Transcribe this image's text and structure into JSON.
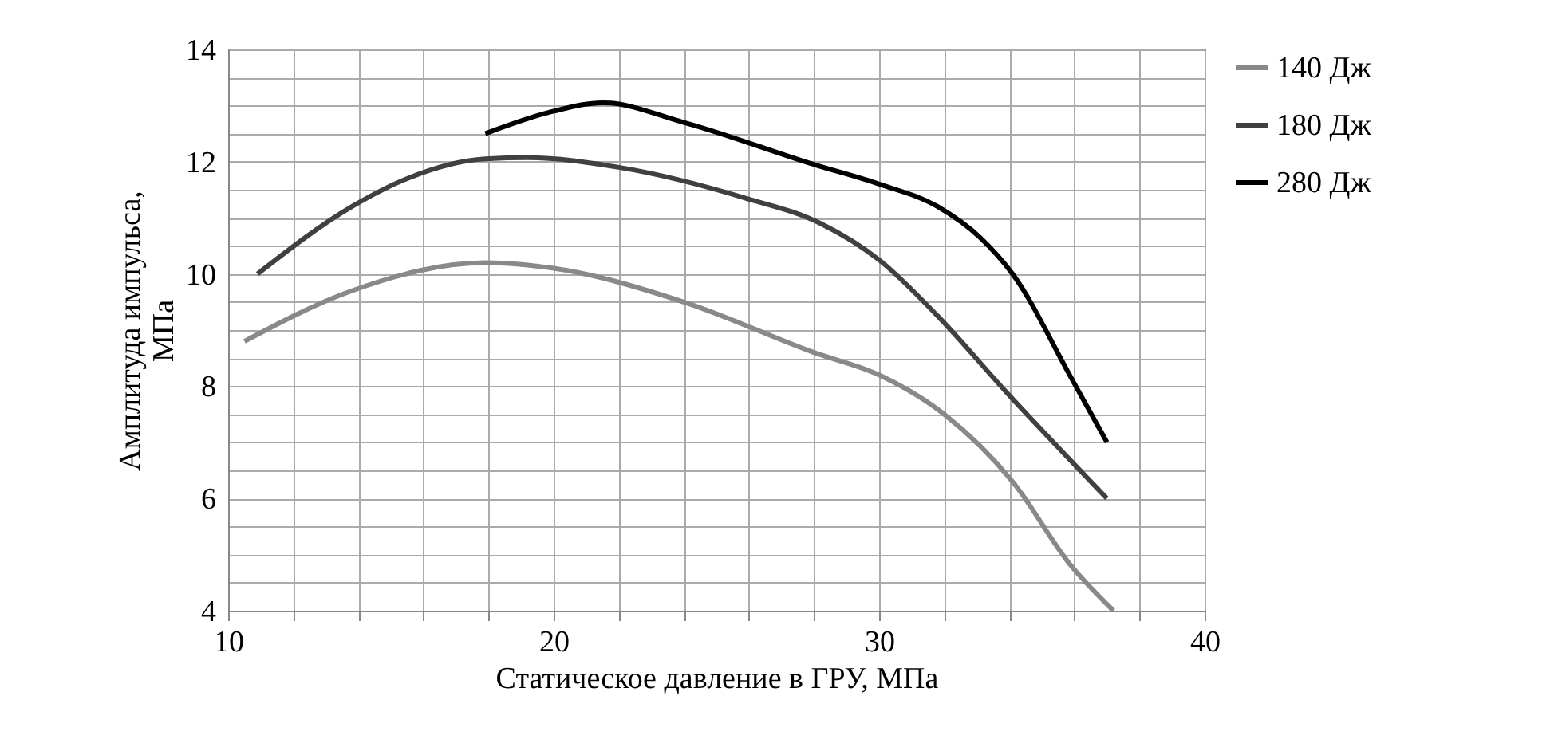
{
  "chart_data": {
    "type": "line",
    "xlabel": "Статическое давление в ГРУ, МПа",
    "ylabel": "Амплитуда импульса,\nМПа",
    "xlim": [
      10,
      40
    ],
    "ylim": [
      4,
      14
    ],
    "xticks": [
      10,
      {
        "value": 12,
        "label": null
      },
      {
        "value": 14,
        "label": null
      },
      {
        "value": 16,
        "label": null
      },
      {
        "value": 18,
        "label": null
      },
      20,
      {
        "value": 22,
        "label": null
      },
      {
        "value": 24,
        "label": null
      },
      {
        "value": 26,
        "label": null
      },
      {
        "value": 28,
        "label": null
      },
      30,
      {
        "value": 32,
        "label": null
      },
      {
        "value": 34,
        "label": null
      },
      {
        "value": 36,
        "label": null
      },
      {
        "value": 38,
        "label": null
      },
      40
    ],
    "yticks": [
      4,
      {
        "value": 4.5,
        "label": null
      },
      {
        "value": 5,
        "label": null
      },
      {
        "value": 5.5,
        "label": null
      },
      6,
      {
        "value": 6.5,
        "label": null
      },
      {
        "value": 7,
        "label": null
      },
      {
        "value": 7.5,
        "label": null
      },
      8,
      {
        "value": 8.5,
        "label": null
      },
      {
        "value": 9,
        "label": null
      },
      {
        "value": 9.5,
        "label": null
      },
      10,
      {
        "value": 10.5,
        "label": null
      },
      {
        "value": 11,
        "label": null
      },
      {
        "value": 11.5,
        "label": null
      },
      12,
      {
        "value": 12.5,
        "label": null
      },
      {
        "value": 13,
        "label": null
      },
      {
        "value": 13.5,
        "label": null
      },
      14
    ],
    "grid": true,
    "legend": "right",
    "marker": "none",
    "line_style": "solid",
    "series": [
      {
        "name": "140 Дж",
        "color": "#898989",
        "x": [
          10.5,
          13.8,
          17.9,
          20.0,
          24.0,
          28.0,
          30.0,
          32.0,
          34.1,
          35.9,
          37.2
        ],
        "values": [
          8.8,
          9.7,
          10.2,
          10.1,
          9.5,
          8.6,
          8.2,
          7.5,
          6.3,
          4.8,
          4.0
        ]
      },
      {
        "name": "180 Дж",
        "color": "#404040",
        "x": [
          10.9,
          13.8,
          15.5,
          17.9,
          19.2,
          22.0,
          25.9,
          28.2,
          30.0,
          31.8,
          33.9,
          37.0
        ],
        "values": [
          10.0,
          11.2,
          11.7,
          12.05,
          12.07,
          11.9,
          11.35,
          10.9,
          10.25,
          9.25,
          7.9,
          6.0
        ]
      },
      {
        "name": "280 Дж",
        "color": "#000000",
        "x": [
          17.9,
          20.0,
          21.5,
          24.0,
          28.0,
          30.0,
          31.8,
          33.1,
          34.1,
          35.9,
          37.0
        ],
        "values": [
          12.5,
          12.9,
          13.05,
          12.7,
          11.95,
          11.6,
          11.2,
          10.65,
          10.0,
          8.15,
          7.0
        ]
      }
    ]
  }
}
